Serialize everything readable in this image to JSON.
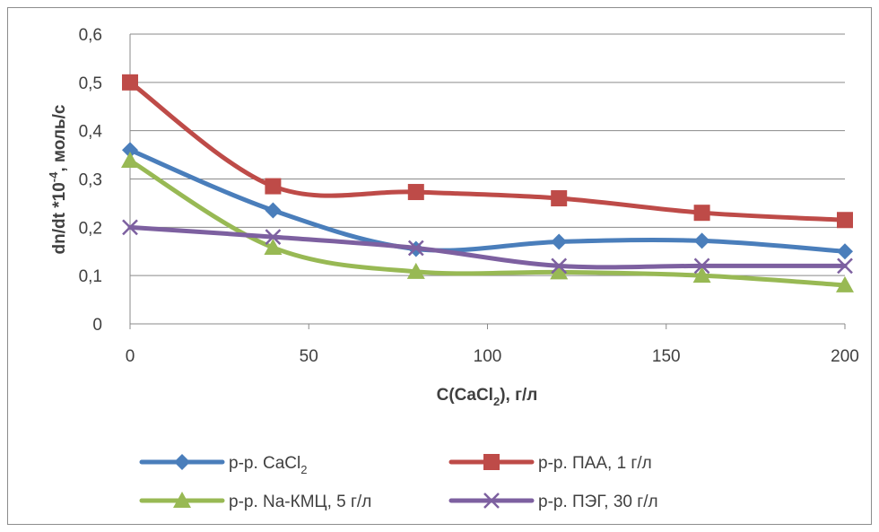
{
  "chart_data": {
    "type": "line",
    "xlabel_parts": [
      "C(CaCl",
      "2",
      "), г/л"
    ],
    "ylabel_parts": [
      "dn/dt *10",
      "-4",
      ", моль/с"
    ],
    "x": [
      0,
      40,
      80,
      120,
      160,
      200
    ],
    "xlim": [
      0,
      200
    ],
    "ylim": [
      0,
      0.6
    ],
    "xticks": [
      "0",
      "50",
      "100",
      "150",
      "200"
    ],
    "xtick_values": [
      0,
      50,
      100,
      150,
      200
    ],
    "yticks": [
      "0",
      "0,1",
      "0,2",
      "0,3",
      "0,4",
      "0,5",
      "0,6"
    ],
    "ytick_values": [
      0,
      0.1,
      0.2,
      0.3,
      0.4,
      0.5,
      0.6
    ],
    "grid": "horizontal",
    "legend_position": "bottom",
    "series": [
      {
        "name_parts": [
          "р-р. CaCl",
          "2",
          ""
        ],
        "color": "#4a7ebb",
        "marker": "diamond",
        "values": [
          0.36,
          0.235,
          0.155,
          0.17,
          0.172,
          0.15
        ]
      },
      {
        "name_parts": [
          "р-р. ПАА,  1 г/л",
          "",
          ""
        ],
        "color": "#be4b48",
        "marker": "square",
        "values": [
          0.5,
          0.285,
          0.273,
          0.26,
          0.23,
          0.215
        ]
      },
      {
        "name_parts": [
          "р-р. Na-КМЦ,  5 г/л",
          "",
          ""
        ],
        "color": "#98b954",
        "marker": "triangle",
        "values": [
          0.338,
          0.158,
          0.108,
          0.107,
          0.1,
          0.08
        ]
      },
      {
        "name_parts": [
          "р-р. ПЭГ,  30 г/л",
          "",
          ""
        ],
        "color": "#7d60a0",
        "marker": "x",
        "values": [
          0.2,
          0.18,
          0.157,
          0.12,
          0.12,
          0.12
        ]
      }
    ]
  }
}
